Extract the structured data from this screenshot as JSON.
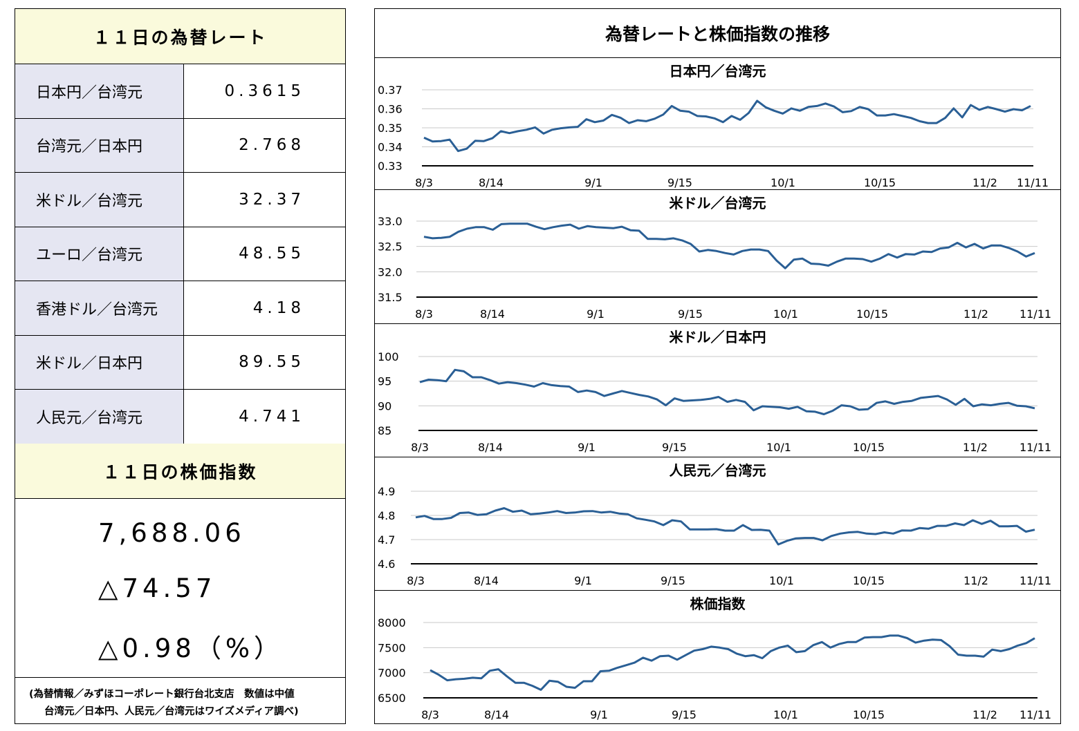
{
  "left_panel": {
    "fx_title": "１１日の為替レート",
    "fx_rates": [
      {
        "label": "日本円／台湾元",
        "value": "0.3615"
      },
      {
        "label": "台湾元／日本円",
        "value": "2.768"
      },
      {
        "label": "米ドル／台湾元",
        "value": "32.37"
      },
      {
        "label": "ユーロ／台湾元",
        "value": "48.55"
      },
      {
        "label": "香港ドル／台湾元",
        "value": "4.18"
      },
      {
        "label": "米ドル／日本円",
        "value": "89.55"
      },
      {
        "label": "人民元／台湾元",
        "value": "4.741"
      }
    ],
    "stock_title": "１１日の株価指数",
    "stock_value": "7,688.06",
    "stock_change": "△74.57",
    "stock_change_pct": "△0.98（%）",
    "note_line1": "(為替情報／みずほコーポレート銀行台北支店　数値は中値",
    "note_line2": "台湾元／日本円、人民元／台湾元はワイズメディア調べ)"
  },
  "right_panel": {
    "title": "為替レートと株価指数の推移"
  },
  "colors": {
    "line": "#2a5f95",
    "header_bg": "#fafadc",
    "label_bg": "#e5e6f2"
  },
  "chart_data": [
    {
      "type": "line",
      "title": "日本円／台湾元",
      "x_ticks": [
        "8/3",
        "8/14",
        "9/1",
        "9/15",
        "10/1",
        "10/15",
        "11/2",
        "11/11"
      ],
      "y_ticks": [
        "0.37",
        "0.36",
        "0.35",
        "0.34",
        "0.33"
      ],
      "ylim": [
        0.33,
        0.37
      ],
      "values": [
        0.3448,
        0.3428,
        0.343,
        0.3438,
        0.3378,
        0.339,
        0.3432,
        0.343,
        0.3445,
        0.3482,
        0.3472,
        0.3482,
        0.349,
        0.3502,
        0.347,
        0.349,
        0.3498,
        0.3502,
        0.3505,
        0.3545,
        0.353,
        0.3538,
        0.3568,
        0.3553,
        0.3525,
        0.354,
        0.3535,
        0.3548,
        0.357,
        0.3615,
        0.359,
        0.3585,
        0.3562,
        0.356,
        0.355,
        0.353,
        0.3562,
        0.3542,
        0.3578,
        0.3642,
        0.3608,
        0.359,
        0.3575,
        0.3602,
        0.359,
        0.361,
        0.3615,
        0.3628,
        0.3612,
        0.3582,
        0.3588,
        0.361,
        0.3598,
        0.3565,
        0.3565,
        0.3572,
        0.3562,
        0.3552,
        0.3535,
        0.3525,
        0.3525,
        0.3552,
        0.3602,
        0.3555,
        0.362,
        0.3595,
        0.361,
        0.3598,
        0.3585,
        0.3598,
        0.3592,
        0.3615
      ]
    },
    {
      "type": "line",
      "title": "米ドル／台湾元",
      "x_ticks": [
        "8/3",
        "8/14",
        "9/1",
        "9/15",
        "10/1",
        "10/15",
        "11/2",
        "11/11"
      ],
      "y_ticks": [
        "33.0",
        "32.5",
        "32.0",
        "31.5"
      ],
      "ylim": [
        31.5,
        33.0
      ],
      "values": [
        32.69,
        32.66,
        32.67,
        32.69,
        32.79,
        32.85,
        32.88,
        32.88,
        32.83,
        32.94,
        32.95,
        32.95,
        32.95,
        32.89,
        32.84,
        32.88,
        32.91,
        32.93,
        32.85,
        32.9,
        32.88,
        32.87,
        32.86,
        32.89,
        32.82,
        32.81,
        32.65,
        32.65,
        32.64,
        32.66,
        32.62,
        32.55,
        32.4,
        32.43,
        32.41,
        32.37,
        32.34,
        32.41,
        32.44,
        32.44,
        32.41,
        32.22,
        32.07,
        32.24,
        32.26,
        32.16,
        32.15,
        32.12,
        32.2,
        32.26,
        32.26,
        32.25,
        32.2,
        32.26,
        32.35,
        32.28,
        32.35,
        32.34,
        32.4,
        32.39,
        32.46,
        32.48,
        32.57,
        32.48,
        32.55,
        32.46,
        32.52,
        32.52,
        32.47,
        32.4,
        32.3,
        32.37
      ]
    },
    {
      "type": "line",
      "title": "米ドル／日本円",
      "x_ticks": [
        "8/3",
        "8/14",
        "9/1",
        "9/15",
        "10/1",
        "10/15",
        "11/2",
        "11/11"
      ],
      "y_ticks": [
        "100",
        "95",
        "90",
        "85"
      ],
      "ylim": [
        85,
        100
      ],
      "values": [
        94.8,
        95.3,
        95.2,
        95.0,
        97.3,
        97.0,
        95.8,
        95.8,
        95.2,
        94.5,
        94.8,
        94.6,
        94.3,
        93.9,
        94.6,
        94.2,
        94.0,
        93.9,
        92.8,
        93.1,
        92.8,
        92.0,
        92.5,
        93.0,
        92.6,
        92.2,
        91.9,
        91.3,
        90.1,
        91.5,
        91.0,
        91.1,
        91.2,
        91.4,
        91.8,
        90.8,
        91.2,
        90.8,
        89.1,
        89.9,
        89.8,
        89.7,
        89.4,
        89.8,
        88.9,
        88.8,
        88.3,
        89.0,
        90.1,
        89.9,
        89.2,
        89.3,
        90.6,
        90.9,
        90.4,
        90.8,
        91.0,
        91.6,
        91.8,
        92.0,
        91.3,
        90.2,
        91.4,
        89.9,
        90.3,
        90.1,
        90.4,
        90.6,
        90.0,
        89.9,
        89.5
      ]
    },
    {
      "type": "line",
      "title": "人民元／台湾元",
      "x_ticks": [
        "8/3",
        "8/14",
        "9/1",
        "9/15",
        "10/1",
        "10/15",
        "11/2",
        "11/11"
      ],
      "y_ticks": [
        "4.9",
        "4.8",
        "4.7",
        "4.6"
      ],
      "ylim": [
        4.6,
        4.9
      ],
      "values": [
        4.792,
        4.798,
        4.785,
        4.785,
        4.79,
        4.81,
        4.812,
        4.802,
        4.805,
        4.82,
        4.83,
        4.815,
        4.82,
        4.805,
        4.808,
        4.812,
        4.818,
        4.81,
        4.812,
        4.817,
        4.818,
        4.812,
        4.815,
        4.808,
        4.805,
        4.788,
        4.782,
        4.775,
        4.76,
        4.78,
        4.775,
        4.742,
        4.742,
        4.742,
        4.743,
        4.737,
        4.737,
        4.76,
        4.74,
        4.741,
        4.737,
        4.68,
        4.695,
        4.705,
        4.707,
        4.707,
        4.697,
        4.715,
        4.725,
        4.73,
        4.732,
        4.725,
        4.723,
        4.73,
        4.725,
        4.738,
        4.737,
        4.748,
        4.745,
        4.757,
        4.757,
        4.767,
        4.76,
        4.78,
        4.765,
        4.778,
        4.755,
        4.755,
        4.757,
        4.733,
        4.741
      ]
    },
    {
      "type": "line",
      "title": "株価指数",
      "x_ticks": [
        "8/3",
        "8/14",
        "9/1",
        "9/15",
        "10/1",
        "10/15",
        "11/2",
        "11/11"
      ],
      "y_ticks": [
        "8000",
        "7500",
        "7000",
        "6500"
      ],
      "ylim": [
        6500,
        8000
      ],
      "values": [
        7050,
        6960,
        6850,
        6870,
        6880,
        6900,
        6890,
        7040,
        7070,
        6930,
        6800,
        6800,
        6740,
        6660,
        6840,
        6820,
        6720,
        6700,
        6830,
        6830,
        7030,
        7040,
        7100,
        7150,
        7200,
        7300,
        7240,
        7330,
        7340,
        7260,
        7350,
        7440,
        7470,
        7520,
        7500,
        7470,
        7380,
        7330,
        7350,
        7290,
        7430,
        7500,
        7540,
        7410,
        7430,
        7550,
        7610,
        7500,
        7570,
        7610,
        7610,
        7700,
        7710,
        7710,
        7740,
        7740,
        7690,
        7600,
        7640,
        7660,
        7650,
        7530,
        7360,
        7340,
        7340,
        7320,
        7460,
        7430,
        7470,
        7540,
        7590,
        7688
      ]
    }
  ]
}
